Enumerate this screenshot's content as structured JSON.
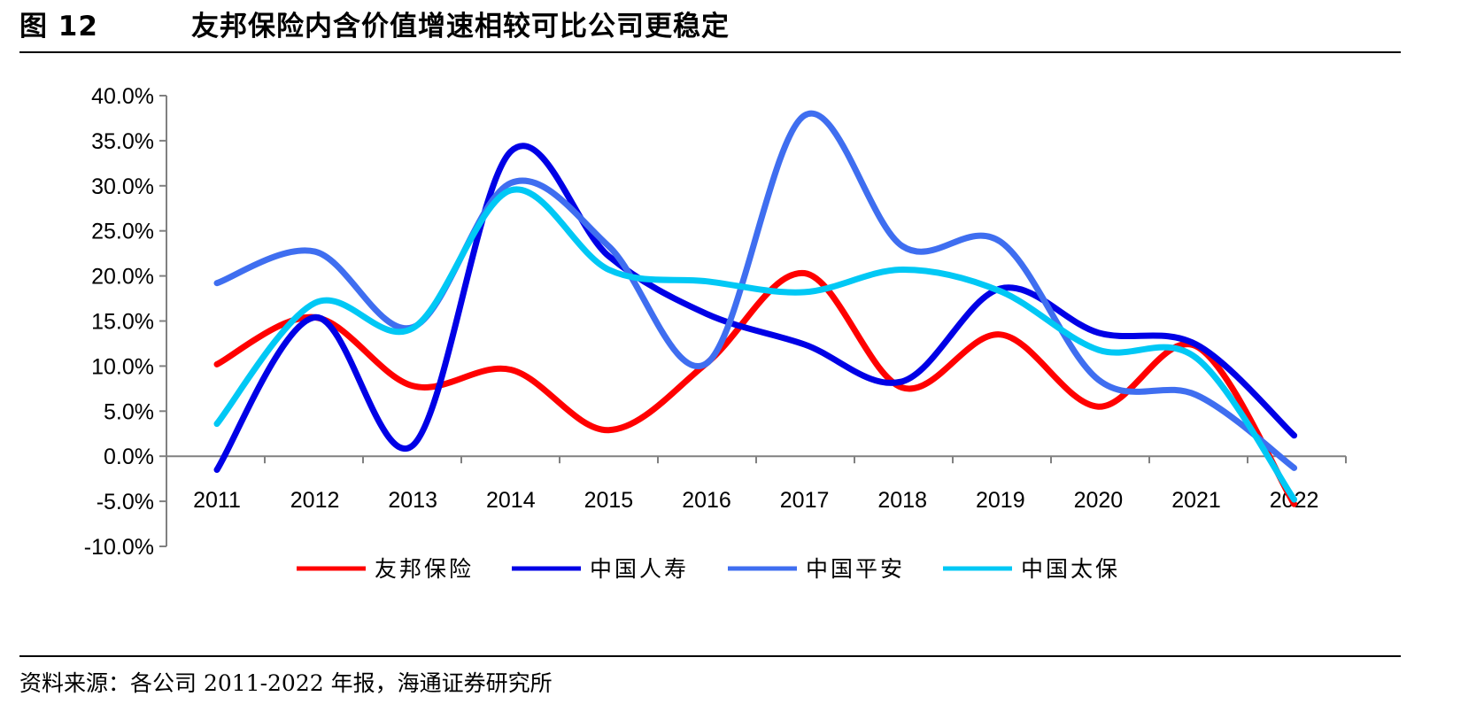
{
  "figure": {
    "number": "图 12",
    "title": "友邦保险内含价值增速相较可比公司更稳定",
    "source": "资料来源：各公司 2011-2022 年报，海通证券研究所"
  },
  "chart_data": {
    "type": "line",
    "title": "",
    "xlabel": "",
    "ylabel": "",
    "categories": [
      "2011",
      "2012",
      "2013",
      "2014",
      "2015",
      "2016",
      "2017",
      "2018",
      "2019",
      "2020",
      "2021",
      "2022"
    ],
    "y_ticks": [
      "40.0%",
      "35.0%",
      "30.0%",
      "25.0%",
      "20.0%",
      "15.0%",
      "10.0%",
      "5.0%",
      "0.0%",
      "-5.0%",
      "-10.0%"
    ],
    "ylim": [
      -10,
      40
    ],
    "y_unit": "%",
    "grid": false,
    "legend_position": "bottom",
    "series": [
      {
        "name": "友邦保险",
        "color": "#ff0000",
        "values": [
          10.2,
          15.4,
          7.8,
          9.6,
          2.9,
          10.3,
          20.3,
          7.6,
          13.5,
          5.5,
          12.2,
          -5.3
        ]
      },
      {
        "name": "中国人寿",
        "color": "#0000e6",
        "values": [
          -1.5,
          15.4,
          1.2,
          33.8,
          22.2,
          15.8,
          12.4,
          8.3,
          18.6,
          13.7,
          12.4,
          2.3
        ]
      },
      {
        "name": "中国平安",
        "color": "#3f6ef0",
        "values": [
          19.2,
          22.7,
          14.3,
          30.3,
          23.3,
          10.3,
          37.8,
          23.3,
          23.8,
          8.5,
          6.8,
          -1.3
        ]
      },
      {
        "name": "中国太保",
        "color": "#00c8f5",
        "values": [
          3.6,
          17.0,
          14.2,
          29.5,
          20.7,
          19.4,
          18.2,
          20.7,
          18.3,
          11.8,
          10.9,
          -4.8
        ]
      }
    ]
  }
}
